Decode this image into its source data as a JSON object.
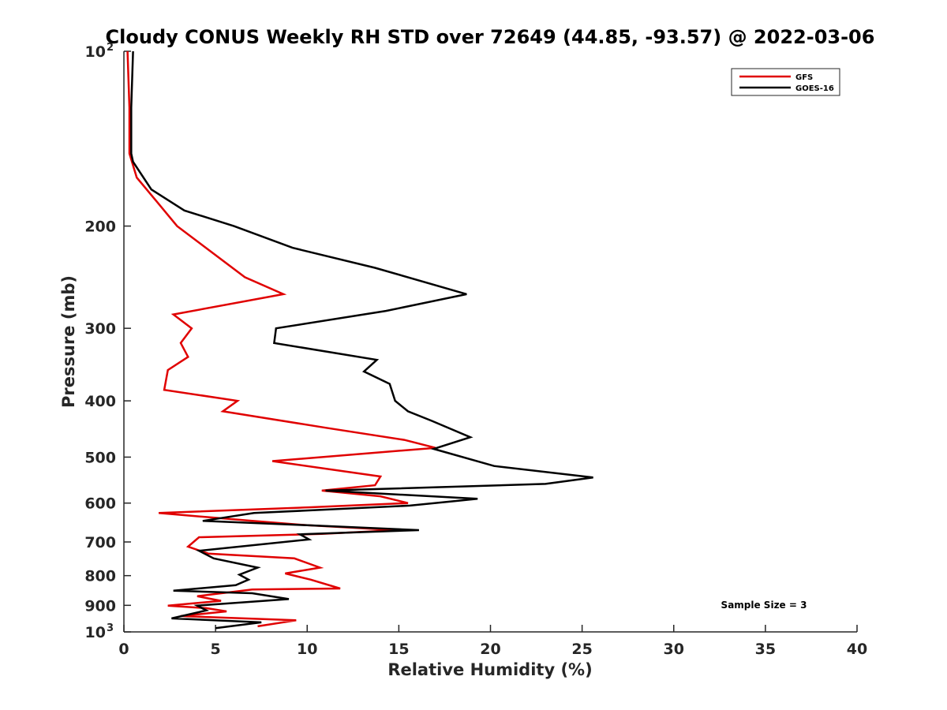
{
  "chart_data": {
    "type": "line",
    "title": "Cloudy CONUS Weekly RH STD over 72649 (44.85, -93.57) @ 2022-03-06",
    "xlabel": "Relative Humidity (%)",
    "ylabel": "Pressure (mb)",
    "xlim": [
      0,
      40
    ],
    "ylim": [
      100,
      1000
    ],
    "y_scale": "log",
    "y_reversed": true,
    "x_ticks": [
      "0",
      "5",
      "10",
      "15",
      "20",
      "25",
      "30",
      "35",
      "40"
    ],
    "y_ticks": [
      {
        "value": 100,
        "label": "10",
        "exp": "2"
      },
      {
        "value": 200,
        "label": "200"
      },
      {
        "value": 300,
        "label": "300"
      },
      {
        "value": 400,
        "label": "400"
      },
      {
        "value": 500,
        "label": "500"
      },
      {
        "value": 600,
        "label": "600"
      },
      {
        "value": 700,
        "label": "700"
      },
      {
        "value": 800,
        "label": "800"
      },
      {
        "value": 900,
        "label": "900"
      },
      {
        "value": 1000,
        "label": "10",
        "exp": "3"
      }
    ],
    "grid": false,
    "legend_position": "top-right",
    "annotation": "Sample Size = 3",
    "series": [
      {
        "name": "GFS",
        "color": "#e00000",
        "points": [
          [
            0.2,
            100
          ],
          [
            0.3,
            125
          ],
          [
            0.3,
            150
          ],
          [
            0.7,
            165
          ],
          [
            1.7,
            180
          ],
          [
            2.9,
            200
          ],
          [
            4.8,
            222
          ],
          [
            6.6,
            245
          ],
          [
            8.7,
            262
          ],
          [
            2.7,
            284
          ],
          [
            3.7,
            300
          ],
          [
            3.1,
            318
          ],
          [
            3.5,
            336
          ],
          [
            2.4,
            354
          ],
          [
            2.2,
            383
          ],
          [
            6.2,
            400
          ],
          [
            5.4,
            417
          ],
          [
            11.0,
            445
          ],
          [
            15.3,
            467
          ],
          [
            17.0,
            482
          ],
          [
            8.1,
            508
          ],
          [
            14.0,
            540
          ],
          [
            13.7,
            559
          ],
          [
            10.8,
            571
          ],
          [
            14.0,
            584
          ],
          [
            15.5,
            600
          ],
          [
            10.2,
            610
          ],
          [
            1.9,
            624
          ],
          [
            7.0,
            644
          ],
          [
            10.0,
            655
          ],
          [
            14.9,
            668
          ],
          [
            10.8,
            678
          ],
          [
            4.1,
            687
          ],
          [
            3.5,
            713
          ],
          [
            4.6,
            733
          ],
          [
            9.3,
            747
          ],
          [
            10.7,
            775
          ],
          [
            8.8,
            793
          ],
          [
            10.2,
            813
          ],
          [
            11.8,
            842
          ],
          [
            7.0,
            845
          ],
          [
            4.0,
            868
          ],
          [
            5.3,
            884
          ],
          [
            2.4,
            901
          ],
          [
            4.5,
            910
          ],
          [
            5.6,
            922
          ],
          [
            3.1,
            939
          ],
          [
            9.4,
            955
          ],
          [
            7.3,
            978
          ]
        ]
      },
      {
        "name": "GOES-16",
        "color": "#000000",
        "points": [
          [
            0.5,
            100
          ],
          [
            0.4,
            125
          ],
          [
            0.4,
            150
          ],
          [
            0.5,
            155
          ],
          [
            1.5,
            173
          ],
          [
            3.3,
            188
          ],
          [
            6.0,
            200
          ],
          [
            9.2,
            218
          ],
          [
            13.7,
            236
          ],
          [
            18.7,
            262
          ],
          [
            14.3,
            280
          ],
          [
            8.3,
            300
          ],
          [
            8.2,
            318
          ],
          [
            13.8,
            340
          ],
          [
            13.1,
            356
          ],
          [
            14.5,
            374
          ],
          [
            14.8,
            400
          ],
          [
            15.5,
            417
          ],
          [
            16.8,
            433
          ],
          [
            18.9,
            462
          ],
          [
            16.9,
            484
          ],
          [
            20.2,
            518
          ],
          [
            25.6,
            542
          ],
          [
            23.0,
            556
          ],
          [
            11.0,
            571
          ],
          [
            19.3,
            590
          ],
          [
            15.6,
            606
          ],
          [
            7.1,
            624
          ],
          [
            4.3,
            644
          ],
          [
            10.0,
            655
          ],
          [
            16.1,
            668
          ],
          [
            9.6,
            679
          ],
          [
            10.1,
            693
          ],
          [
            4.1,
            725
          ],
          [
            4.9,
            747
          ],
          [
            7.3,
            775
          ],
          [
            6.3,
            797
          ],
          [
            6.8,
            813
          ],
          [
            6.1,
            831
          ],
          [
            2.7,
            849
          ],
          [
            7.0,
            858
          ],
          [
            9.0,
            878
          ],
          [
            4.0,
            901
          ],
          [
            4.5,
            918
          ],
          [
            3.8,
            929
          ],
          [
            2.6,
            948
          ],
          [
            7.5,
            963
          ],
          [
            5.0,
            985
          ]
        ]
      }
    ]
  }
}
